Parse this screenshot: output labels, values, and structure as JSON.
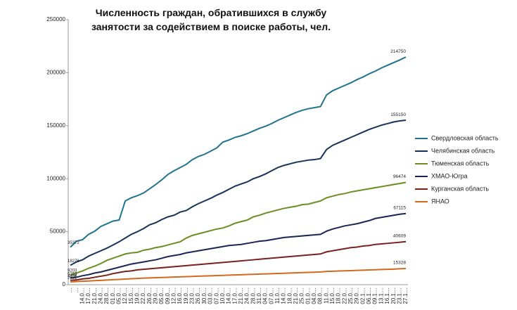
{
  "chart_data": {
    "type": "line",
    "title": "Численность граждан, обратившихся в службу занятости за содействием в поиске работы, чел.",
    "categories": [
      "…",
      "…",
      "14.0…",
      "17.0…",
      "21.0…",
      "24.0…",
      "28.0…",
      "01.0…",
      "05.0…",
      "12.0…",
      "15.0…",
      "19.0…",
      "22.0…",
      "26.0…",
      "29.0…",
      "05.0…",
      "09.0…",
      "12.0…",
      "16.0…",
      "19.0…",
      "23.0…",
      "26.0…",
      "30.0…",
      "03.0…",
      "07.0…",
      "10.0…",
      "14.0…",
      "17.0…",
      "21.0…",
      "24.0…",
      "28.0…",
      "31.0…",
      "04.0…",
      "07.0…",
      "11.0…",
      "14.0…",
      "18.0…",
      "21.0…",
      "25.0…",
      "01.0…",
      "04.0…",
      "08.0…",
      "11.0…",
      "15.0…",
      "18.0…",
      "22.0…",
      "25.0…",
      "29.0…",
      "02.1…",
      "06.1…",
      "09.1…",
      "13.1…",
      "16.1…",
      "20.1…",
      "23.1…",
      "27.1…"
    ],
    "series": [
      {
        "name": "Свердловская область",
        "color": "#1f7391",
        "values": [
          35372,
          41000,
          42500,
          47500,
          50500,
          55000,
          57500,
          60000,
          61000,
          79000,
          82000,
          84000,
          86500,
          90500,
          94500,
          99000,
          104000,
          107500,
          110500,
          113500,
          118000,
          121000,
          123000,
          126000,
          129000,
          134500,
          136500,
          139000,
          140500,
          142500,
          145000,
          147500,
          149500,
          152000,
          155000,
          157500,
          160000,
          162500,
          164500,
          166000,
          167000,
          168000,
          179000,
          183000,
          185500,
          188000,
          190500,
          193500,
          196000,
          199000,
          201500,
          204500,
          207000,
          209500,
          212000,
          214750
        ]
      },
      {
        "name": "Челябинская область",
        "color": "#16325c",
        "values": [
          18276,
          21500,
          23500,
          27000,
          29500,
          32000,
          34500,
          37500,
          40500,
          44000,
          47500,
          50000,
          53000,
          56500,
          58500,
          61500,
          64000,
          65500,
          68500,
          70000,
          73500,
          76500,
          79000,
          81500,
          84500,
          87000,
          90000,
          93000,
          95000,
          97000,
          100000,
          102000,
          104500,
          107500,
          110500,
          112500,
          114000,
          115500,
          116500,
          117500,
          118000,
          119000,
          127500,
          131500,
          134000,
          136500,
          139000,
          141500,
          144000,
          146500,
          148500,
          150500,
          152000,
          153500,
          154500,
          155150
        ]
      },
      {
        "name": "Тюменская область",
        "color": "#6b8e23",
        "values": [
          9203,
          11000,
          13000,
          15500,
          17500,
          20000,
          23000,
          25000,
          27000,
          29000,
          30000,
          30500,
          32500,
          33500,
          35000,
          36000,
          37500,
          39000,
          40500,
          44000,
          46500,
          48000,
          49500,
          51000,
          52500,
          53500,
          55500,
          58000,
          59500,
          61000,
          64000,
          65500,
          67500,
          69000,
          70500,
          72000,
          73000,
          74000,
          75500,
          76000,
          77500,
          79000,
          82000,
          83500,
          85000,
          86000,
          87500,
          88500,
          89500,
          90500,
          91500,
          92500,
          93500,
          94500,
          95500,
          96474
        ]
      },
      {
        "name": "ХМАО-Югра",
        "color": "#1b2456",
        "values": [
          6153,
          7000,
          8500,
          9500,
          11000,
          12000,
          13500,
          15000,
          16500,
          18000,
          19500,
          20500,
          21500,
          22500,
          23500,
          25000,
          26500,
          27500,
          28500,
          30000,
          31000,
          32000,
          33000,
          34000,
          35000,
          36000,
          37000,
          37500,
          38000,
          39000,
          40000,
          41000,
          41500,
          42500,
          43500,
          44500,
          45000,
          45500,
          46000,
          46500,
          47000,
          47500,
          50500,
          52500,
          54000,
          55500,
          56500,
          57500,
          59000,
          60500,
          62500,
          63500,
          64500,
          65500,
          66500,
          67115
        ]
      },
      {
        "name": "Курганская область",
        "color": "#7a1f1f",
        "values": [
          4106,
          4500,
          5500,
          6000,
          7000,
          8000,
          9000,
          10500,
          11500,
          12500,
          13000,
          14000,
          14500,
          15000,
          15500,
          16000,
          16500,
          17000,
          17500,
          18000,
          18500,
          19000,
          19500,
          20000,
          20500,
          21000,
          21500,
          22000,
          22500,
          23000,
          23500,
          24000,
          24500,
          25000,
          25500,
          26000,
          26500,
          27000,
          27500,
          28000,
          28500,
          29000,
          31000,
          32000,
          33000,
          34000,
          35000,
          35500,
          36500,
          37000,
          38000,
          38500,
          39000,
          39500,
          40000,
          40609
        ]
      },
      {
        "name": "ЯНАО",
        "color": "#d2691e",
        "values": [
          2691,
          3000,
          3200,
          3500,
          3800,
          4100,
          4400,
          4700,
          5000,
          5300,
          5600,
          5900,
          6200,
          6400,
          6600,
          6800,
          7000,
          7200,
          7400,
          7600,
          7800,
          8000,
          8200,
          8400,
          8600,
          8800,
          9000,
          9200,
          9400,
          9600,
          9800,
          10000,
          10200,
          10400,
          10600,
          10800,
          11000,
          11200,
          11400,
          11600,
          11800,
          12000,
          12500,
          12700,
          12900,
          13100,
          13300,
          13500,
          13700,
          13900,
          14100,
          14300,
          14500,
          14700,
          15000,
          15328
        ]
      }
    ],
    "ylim": [
      0,
      250000
    ],
    "yticks": [
      0,
      50000,
      100000,
      150000,
      200000,
      250000
    ],
    "grid": false,
    "legend": "right"
  }
}
